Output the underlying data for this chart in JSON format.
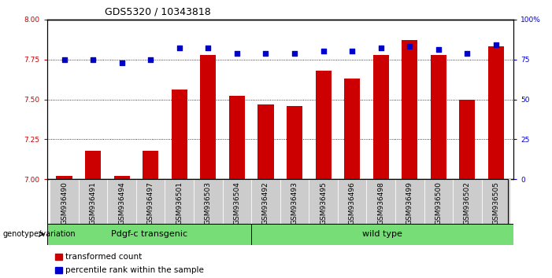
{
  "title": "GDS5320 / 10343818",
  "samples": [
    "GSM936490",
    "GSM936491",
    "GSM936494",
    "GSM936497",
    "GSM936501",
    "GSM936503",
    "GSM936504",
    "GSM936492",
    "GSM936493",
    "GSM936495",
    "GSM936496",
    "GSM936498",
    "GSM936499",
    "GSM936500",
    "GSM936502",
    "GSM936505"
  ],
  "red_values": [
    7.02,
    7.18,
    7.02,
    7.18,
    7.56,
    7.78,
    7.52,
    7.47,
    7.46,
    7.68,
    7.63,
    7.78,
    7.87,
    7.78,
    7.5,
    7.83
  ],
  "blue_values": [
    75,
    75,
    73,
    75,
    82,
    82,
    79,
    79,
    79,
    80,
    80,
    82,
    83,
    81,
    79,
    84
  ],
  "pdgf_count": 7,
  "ylim_left": [
    7.0,
    8.0
  ],
  "ylim_right": [
    0,
    100
  ],
  "yticks_left": [
    7.0,
    7.25,
    7.5,
    7.75,
    8.0
  ],
  "yticks_right": [
    0,
    25,
    50,
    75,
    100
  ],
  "ytick_labels_right": [
    "0",
    "25",
    "50",
    "75",
    "100%"
  ],
  "red_color": "#CC0000",
  "blue_color": "#0000CC",
  "group_color": "#77DD77",
  "grey_box_color": "#CCCCCC",
  "legend_items": [
    {
      "color": "#CC0000",
      "label": "transformed count"
    },
    {
      "color": "#0000CC",
      "label": "percentile rank within the sample"
    }
  ],
  "group_labels": [
    "Pdgf-c transgenic",
    "wild type"
  ],
  "genotype_label": "genotype/variation",
  "title_fontsize": 9,
  "tick_label_fontsize": 6.5,
  "axis_label_fontsize": 7,
  "group_label_fontsize": 8,
  "legend_fontsize": 7.5
}
